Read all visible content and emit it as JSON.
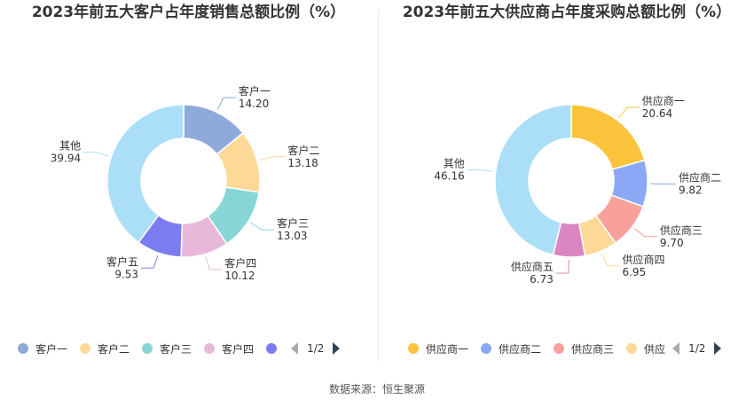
{
  "source": "数据来源：恒生聚源",
  "chart_data": [
    {
      "type": "pie",
      "subtype": "donut",
      "title": "2023年前五大客户占年度销售总额比例（%）",
      "categories": [
        "客户一",
        "客户二",
        "客户三",
        "客户四",
        "客户五",
        "其他"
      ],
      "values": [
        14.2,
        13.18,
        13.03,
        10.12,
        9.53,
        39.94
      ],
      "value_labels": [
        "14.20",
        "13.18",
        "13.03",
        "10.12",
        "9.53",
        "39.94"
      ],
      "colors": [
        "#8eaadb",
        "#fdd998",
        "#86d6d6",
        "#e8b8da",
        "#7b7cf2",
        "#aadff7"
      ],
      "legend": {
        "items": [
          "客户一",
          "客户二",
          "客户三",
          "客户四",
          ""
        ],
        "page": "1/2",
        "position": "bottom"
      }
    },
    {
      "type": "pie",
      "subtype": "donut",
      "title": "2023年前五大供应商占年度采购总额比例（%）",
      "categories": [
        "供应商一",
        "供应商二",
        "供应商三",
        "供应商四",
        "供应商五",
        "其他"
      ],
      "values": [
        20.64,
        9.82,
        9.7,
        6.95,
        6.73,
        46.16
      ],
      "value_labels": [
        "20.64",
        "9.82",
        "9.70",
        "6.95",
        "6.73",
        "46.16"
      ],
      "colors": [
        "#fcc43d",
        "#8ba8f7",
        "#f8a19a",
        "#fdd998",
        "#da86c2",
        "#aadff7"
      ],
      "legend": {
        "items": [
          "供应商一",
          "供应商二",
          "供应商三",
          "供应"
        ],
        "page": "1/2",
        "position": "bottom"
      }
    }
  ]
}
